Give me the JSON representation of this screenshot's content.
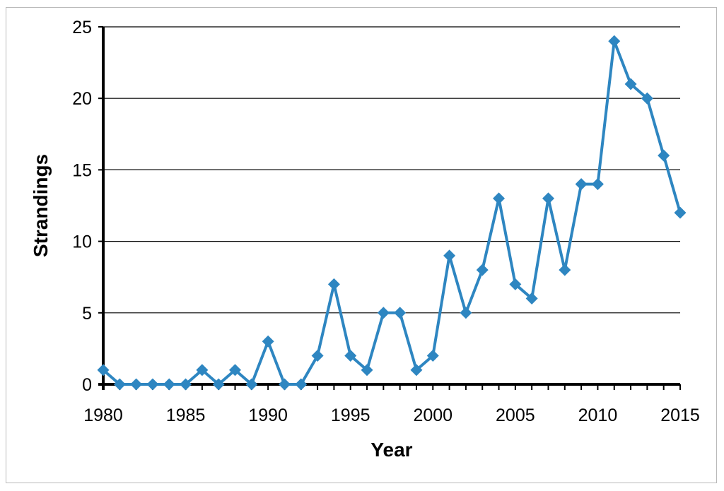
{
  "chart_data": {
    "type": "line",
    "title": "",
    "xlabel": "Year",
    "ylabel": "Strandings",
    "xlim": [
      1980,
      2015
    ],
    "ylim": [
      0,
      25
    ],
    "x_ticks": [
      "1980",
      "1985",
      "1990",
      "1995",
      "2000",
      "2005",
      "2010",
      "2015"
    ],
    "y_ticks": [
      "0",
      "5",
      "10",
      "15",
      "20",
      "25"
    ],
    "grid": "horizontal",
    "legend": "none",
    "colors": {
      "series": "#2e86c1",
      "grid": "#000000"
    },
    "marker": "diamond",
    "x": [
      1980,
      1981,
      1982,
      1983,
      1984,
      1985,
      1986,
      1987,
      1988,
      1989,
      1990,
      1991,
      1992,
      1993,
      1994,
      1995,
      1996,
      1997,
      1998,
      1999,
      2000,
      2001,
      2002,
      2003,
      2004,
      2005,
      2006,
      2007,
      2008,
      2009,
      2010,
      2011,
      2012,
      2013,
      2014,
      2015
    ],
    "series": [
      {
        "values": [
          1,
          0,
          0,
          0,
          0,
          0,
          1,
          0,
          1,
          0,
          3,
          0,
          0,
          2,
          7,
          2,
          1,
          5,
          5,
          1,
          2,
          9,
          5,
          8,
          13,
          7,
          6,
          13,
          8,
          14,
          14,
          24,
          21,
          20,
          16,
          12
        ]
      }
    ]
  }
}
